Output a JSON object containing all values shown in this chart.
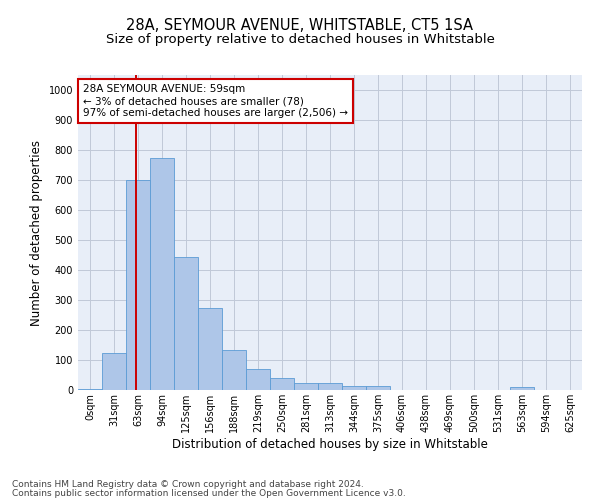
{
  "title": "28A, SEYMOUR AVENUE, WHITSTABLE, CT5 1SA",
  "subtitle": "Size of property relative to detached houses in Whitstable",
  "xlabel": "Distribution of detached houses by size in Whitstable",
  "ylabel": "Number of detached properties",
  "bin_labels": [
    "0sqm",
    "31sqm",
    "63sqm",
    "94sqm",
    "125sqm",
    "156sqm",
    "188sqm",
    "219sqm",
    "250sqm",
    "281sqm",
    "313sqm",
    "344sqm",
    "375sqm",
    "406sqm",
    "438sqm",
    "469sqm",
    "500sqm",
    "531sqm",
    "563sqm",
    "594sqm",
    "625sqm"
  ],
  "bar_values": [
    5,
    125,
    700,
    775,
    445,
    275,
    135,
    70,
    40,
    25,
    25,
    12,
    12,
    0,
    0,
    0,
    0,
    0,
    10,
    0,
    0
  ],
  "bar_color": "#aec6e8",
  "bar_edge_color": "#5b9bd5",
  "vline_x": 1.9,
  "vline_color": "#cc0000",
  "ylim": [
    0,
    1050
  ],
  "yticks": [
    0,
    100,
    200,
    300,
    400,
    500,
    600,
    700,
    800,
    900,
    1000
  ],
  "annotation_text": "28A SEYMOUR AVENUE: 59sqm\n← 3% of detached houses are smaller (78)\n97% of semi-detached houses are larger (2,506) →",
  "annotation_box_color": "#ffffff",
  "annotation_box_edge": "#cc0000",
  "footer_line1": "Contains HM Land Registry data © Crown copyright and database right 2024.",
  "footer_line2": "Contains public sector information licensed under the Open Government Licence v3.0.",
  "bg_color": "#ffffff",
  "plot_bg_color": "#e8eef8",
  "grid_color": "#c0c8d8",
  "title_fontsize": 10.5,
  "subtitle_fontsize": 9.5,
  "axis_label_fontsize": 8.5,
  "tick_fontsize": 7,
  "annotation_fontsize": 7.5,
  "footer_fontsize": 6.5
}
